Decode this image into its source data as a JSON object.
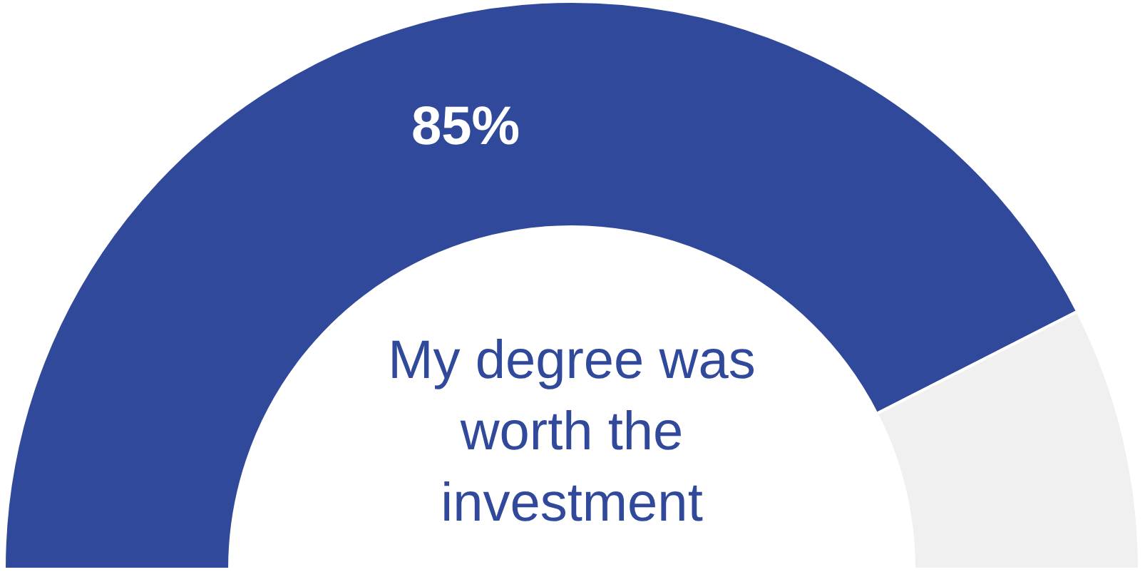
{
  "chart_data": {
    "type": "donut",
    "categories": [
      null,
      null
    ],
    "values": [
      85,
      15
    ],
    "colors": [
      "#30499b",
      "#f0f0f0"
    ],
    "value_labels": [
      "85%",
      null
    ],
    "annotations": [
      "My degree was worth the investment"
    ]
  }
}
